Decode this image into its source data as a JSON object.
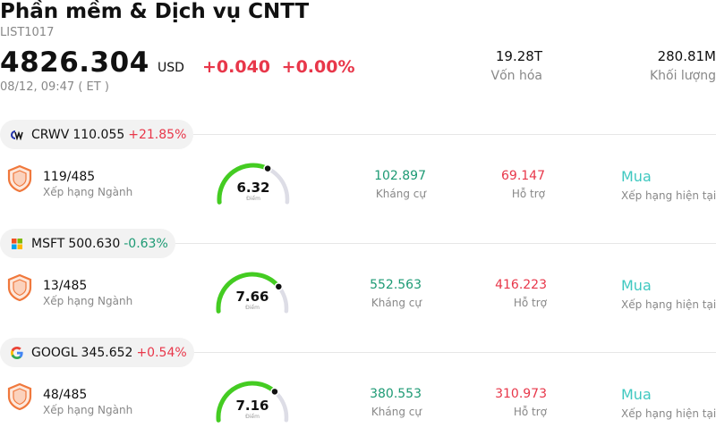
{
  "header": {
    "title": "Phần mềm & Dịch vụ CNTT",
    "code": "LIST1017",
    "price": "4826.304",
    "currency": "USD",
    "change": "+0.040",
    "change_pct": "+0.00%",
    "datetime": "08/12, 09:47  ( ET )",
    "market_cap_value": "19.28T",
    "market_cap_label": "Vốn hóa",
    "volume_value": "280.81M",
    "volume_label": "Khối lượng"
  },
  "stocks": [
    {
      "ticker": "CRWV",
      "price": "110.055",
      "change": "+21.85%",
      "rank": "119/485",
      "rank_label": "Xếp hạng Ngành",
      "score": "6.32",
      "score_label": "Điểm",
      "score_fraction": 0.632,
      "resistance": "102.897",
      "resistance_label": "Kháng cự",
      "support": "69.147",
      "support_label": "Hỗ trợ",
      "rating": "Mua",
      "rating_label": "Xếp hạng hiện tại",
      "logo_icon": "coreweave-logo-icon"
    },
    {
      "ticker": "MSFT",
      "price": "500.630",
      "change": "-0.63%",
      "rank": "13/485",
      "rank_label": "Xếp hạng Ngành",
      "score": "7.66",
      "score_label": "Điểm",
      "score_fraction": 0.766,
      "resistance": "552.563",
      "resistance_label": "Kháng cự",
      "support": "416.223",
      "support_label": "Hỗ trợ",
      "rating": "Mua",
      "rating_label": "Xếp hạng hiện tại",
      "logo_icon": "microsoft-logo-icon"
    },
    {
      "ticker": "GOOGL",
      "price": "345.652",
      "change": "+0.54%",
      "rank": "48/485",
      "rank_label": "Xếp hạng Ngành",
      "score": "7.16",
      "score_label": "Điểm",
      "score_fraction": 0.716,
      "resistance": "380.553",
      "resistance_label": "Kháng cự",
      "support": "310.973",
      "support_label": "Hỗ trợ",
      "rating": "Mua",
      "rating_label": "Xếp hạng hiện tại",
      "logo_icon": "google-logo-icon"
    }
  ],
  "colors": {
    "up": "#e8374a",
    "down": "#1d9a74",
    "gauge_fill": "#44cc22",
    "gauge_track": "#dddde6",
    "shield": "#f0783c",
    "rating": "#3fc8c0"
  }
}
